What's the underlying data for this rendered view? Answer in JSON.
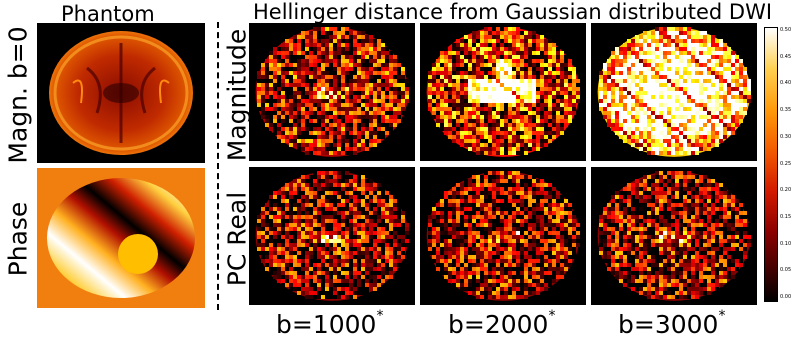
{
  "figure": {
    "left_title": "Phantom",
    "right_title": "Hellinger distance from Gaussian distributed DWI",
    "phantom_rows": [
      "Magn. b=0",
      "Phase"
    ],
    "dwi_rows": [
      "Magnitude",
      "PC Real"
    ],
    "columns": [
      {
        "label": "b=1000",
        "mark": "*"
      },
      {
        "label": "b=2000",
        "mark": "*"
      },
      {
        "label": "b=3000",
        "mark": "*"
      }
    ],
    "colorbar": {
      "ticks": [
        "0.50",
        "0.45",
        "0.40",
        "0.35",
        "0.30",
        "0.25",
        "0.20",
        "0.15",
        "0.10",
        "0.05",
        "0.00"
      ],
      "colormap": "hot"
    },
    "panel_descriptions": [
      {
        "row": "Magnitude",
        "b": 1000,
        "level": 0.15
      },
      {
        "row": "Magnitude",
        "b": 2000,
        "level": 0.22
      },
      {
        "row": "Magnitude",
        "b": 3000,
        "level": 0.38
      },
      {
        "row": "PC Real",
        "b": 1000,
        "level": 0.12
      },
      {
        "row": "PC Real",
        "b": 2000,
        "level": 0.12
      },
      {
        "row": "PC Real",
        "b": 3000,
        "level": 0.12
      }
    ]
  }
}
